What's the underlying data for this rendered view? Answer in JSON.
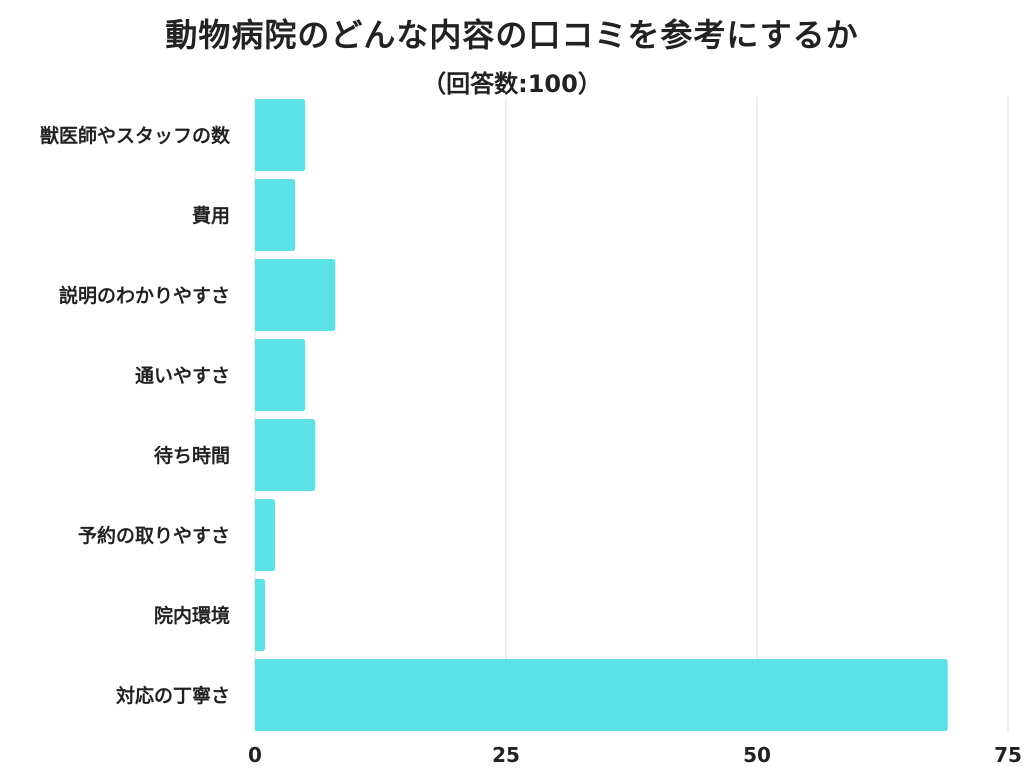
{
  "chart_data": {
    "type": "bar",
    "orientation": "horizontal",
    "title": "動物病院のどんな内容の口コミを参考にするか",
    "subtitle": "（回答数:100）",
    "categories": [
      "獣医師やスタッフの数",
      "費用",
      "説明のわかりやすさ",
      "通いやすさ",
      "待ち時間",
      "予約の取りやすさ",
      "院内環境",
      "対応の丁寧さ"
    ],
    "values": [
      5,
      4,
      8,
      5,
      6,
      2,
      1,
      69
    ],
    "xlim": [
      0,
      75
    ],
    "xticks": [
      0,
      25,
      50,
      75
    ],
    "grid": true,
    "bar_color": "#5ce1e6",
    "grid_color": "#dddddd",
    "xlabel": "",
    "ylabel": ""
  }
}
